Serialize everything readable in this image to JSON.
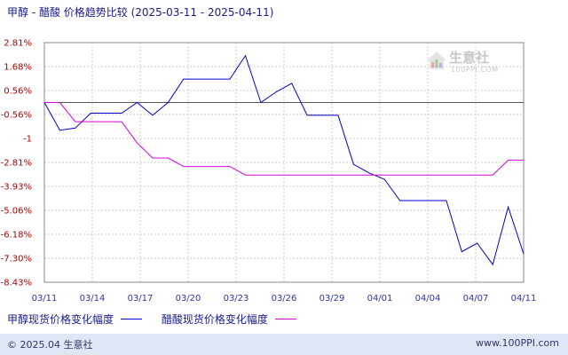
{
  "title": "甲醇 - 醋酸 价格趋势比较 (2025-03-11 - 2025-04-11)",
  "watermark": {
    "name": "生意社",
    "url": "100PPI.COM"
  },
  "footer": {
    "left": "© 2025.04 生意社",
    "right": "www.100PPI.com"
  },
  "colors": {
    "series_blue": "#0000cc",
    "series_magenta": "#dd00dd",
    "tick_y": "#b00000",
    "tick_x": "#333399",
    "grid": "#cccccc",
    "footer_bg": "#dde8f4"
  },
  "chart_data": {
    "type": "line",
    "title": "甲醇 - 醋酸 价格趋势比较 (2025-03-11 - 2025-04-11)",
    "y_ticks": [
      "2.81%",
      "1.68%",
      "0.56%",
      "-0.56%",
      "-1",
      "-2.81%",
      "-3.93%",
      "-5.06%",
      "-6.18%",
      "-7.30%",
      "-8.43%"
    ],
    "x_ticks": [
      "03/11",
      "03/14",
      "03/17",
      "03/20",
      "03/23",
      "03/26",
      "03/29",
      "04/01",
      "04/04",
      "04/07",
      "04/11"
    ],
    "ylim": [
      -8.43,
      2.81
    ],
    "grid": true,
    "legend_position": "bottom",
    "x": [
      "03/11",
      "03/12",
      "03/13",
      "03/14",
      "03/15",
      "03/16",
      "03/17",
      "03/18",
      "03/19",
      "03/20",
      "03/21",
      "03/22",
      "03/23",
      "03/24",
      "03/25",
      "03/26",
      "03/27",
      "03/28",
      "03/29",
      "03/30",
      "03/31",
      "04/01",
      "04/02",
      "04/03",
      "04/04",
      "04/05",
      "04/06",
      "04/07",
      "04/08",
      "04/09",
      "04/10",
      "04/11"
    ],
    "series": [
      {
        "name": "甲醇现货价格变化幅度",
        "values": [
          0,
          -1.3,
          -1.2,
          -0.5,
          -0.5,
          -0.5,
          0,
          -0.6,
          0,
          1.1,
          1.1,
          1.1,
          1.1,
          2.2,
          0,
          0.5,
          0.9,
          -0.6,
          -0.6,
          -0.6,
          -2.9,
          -3.3,
          -3.6,
          -4.6,
          -4.6,
          -4.6,
          -4.6,
          -7.0,
          -6.6,
          -7.6,
          -4.9,
          -7.1
        ]
      },
      {
        "name": "醋酸现货价格变化幅度",
        "values": [
          0,
          0,
          -0.9,
          -0.9,
          -0.9,
          -0.9,
          -1.9,
          -2.6,
          -2.6,
          -3.0,
          -3.0,
          -3.0,
          -3.0,
          -3.4,
          -3.4,
          -3.4,
          -3.4,
          -3.4,
          -3.4,
          -3.4,
          -3.4,
          -3.4,
          -3.4,
          -3.4,
          -3.4,
          -3.4,
          -3.4,
          -3.4,
          -3.4,
          -3.4,
          -2.7,
          -2.7
        ]
      }
    ]
  }
}
